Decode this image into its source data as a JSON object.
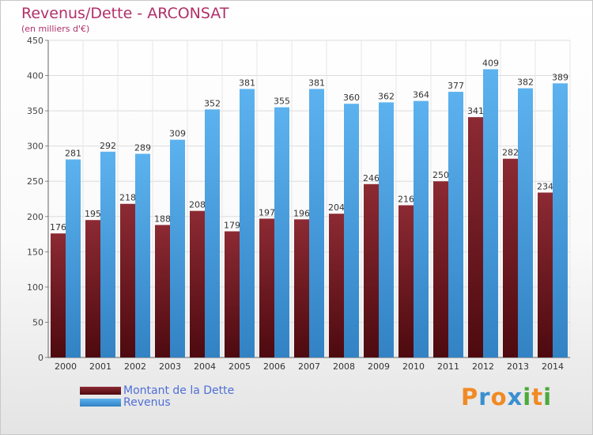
{
  "title": "Revenus/Dette - ARCONSAT",
  "subtitle": "(en milliers d'€)",
  "chart_data": {
    "type": "bar",
    "categories": [
      "2000",
      "2001",
      "2002",
      "2003",
      "2004",
      "2005",
      "2006",
      "2007",
      "2008",
      "2009",
      "2010",
      "2011",
      "2012",
      "2013",
      "2014"
    ],
    "series": [
      {
        "name": "Montant de la Dette",
        "color": "#7a1a22",
        "values": [
          176,
          195,
          218,
          188,
          208,
          179,
          197,
          196,
          204,
          246,
          216,
          250,
          341,
          282,
          234
        ]
      },
      {
        "name": "Revenus",
        "color": "#4a9fe0",
        "values": [
          281,
          292,
          289,
          309,
          352,
          381,
          355,
          381,
          360,
          362,
          364,
          377,
          409,
          382,
          389
        ]
      }
    ],
    "y_ticks": [
      0,
      50,
      100,
      150,
      200,
      250,
      300,
      350,
      400,
      450
    ],
    "ylim": [
      0,
      450
    ],
    "grid": true,
    "legend_position": "bottom-left"
  },
  "logo": {
    "text": "Proxiti",
    "letters": [
      "P",
      "r",
      "o",
      "x",
      "i",
      "t",
      "i"
    ],
    "colors": [
      "#f08a24",
      "#3a8fd0",
      "#f08a24",
      "#3a8fd0",
      "#4aaa3a",
      "#f08a24",
      "#4aaa3a"
    ]
  }
}
